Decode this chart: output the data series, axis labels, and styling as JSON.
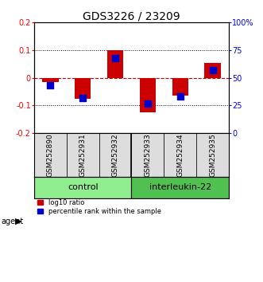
{
  "title": "GDS3226 / 23209",
  "samples": [
    "GSM252890",
    "GSM252931",
    "GSM252932",
    "GSM252933",
    "GSM252934",
    "GSM252935"
  ],
  "log10_ratio": [
    -0.015,
    -0.075,
    0.1,
    -0.125,
    -0.065,
    0.055
  ],
  "percentile_rank": [
    43,
    32,
    68,
    27,
    33,
    57
  ],
  "groups": [
    {
      "label": "control",
      "color": "#90EE90",
      "start": 0,
      "end": 2
    },
    {
      "label": "interleukin-22",
      "color": "#50C050",
      "start": 3,
      "end": 5
    }
  ],
  "ylim_left": [
    -0.2,
    0.2
  ],
  "ylim_right": [
    0,
    100
  ],
  "yticks_left": [
    -0.2,
    -0.1,
    0.0,
    0.1,
    0.2
  ],
  "ytick_labels_left": [
    "-0.2",
    "-0.1",
    "0",
    "0.1",
    "0.2"
  ],
  "yticks_right": [
    0,
    25,
    50,
    75,
    100
  ],
  "ytick_labels_right": [
    "0",
    "25",
    "50",
    "75",
    "100%"
  ],
  "bar_color": "#CC0000",
  "dot_color": "#0000CC",
  "zero_line_color": "#CC0000",
  "grid_color": "#000000",
  "bar_width": 0.5,
  "dot_size": 28,
  "background_color": "#ffffff",
  "plot_bg_color": "#ffffff",
  "legend_items": [
    "log10 ratio",
    "percentile rank within the sample"
  ],
  "agent_label": "agent",
  "title_fontsize": 10,
  "tick_fontsize": 7,
  "label_fontsize": 7,
  "sample_fontsize": 6.5,
  "group_fontsize": 8
}
